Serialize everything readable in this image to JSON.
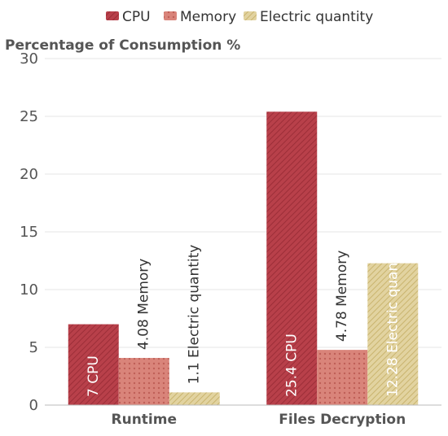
{
  "chart_data": {
    "type": "bar",
    "ylabel": "Percentage of Consumption %",
    "categories": [
      "Runtime",
      "Files Decryption"
    ],
    "series": [
      {
        "name": "CPU",
        "values": [
          7,
          25.4
        ],
        "color": "#b8404a"
      },
      {
        "name": "Memory",
        "values": [
          4.08,
          4.78
        ],
        "color": "#d9847a"
      },
      {
        "name": "Electric quantity",
        "values": [
          1.1,
          12.28
        ],
        "color": "#d6c48a"
      }
    ],
    "ylim": [
      0,
      30
    ],
    "yticks": [
      0,
      5,
      10,
      15,
      20,
      25,
      30
    ],
    "grid": true,
    "legend_position": "top",
    "data_labels": [
      "{value} {series}",
      "rotated vertical"
    ]
  }
}
